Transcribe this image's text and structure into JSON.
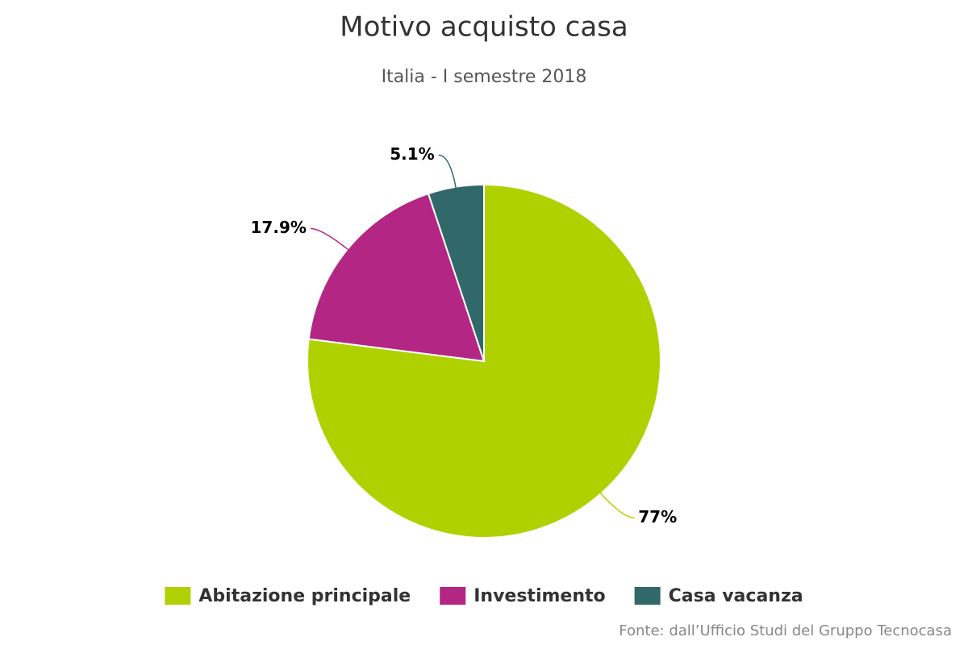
{
  "chart_data": {
    "type": "pie",
    "title": "Motivo acquisto casa",
    "subtitle": "Italia - I semestre 2018",
    "categories": [
      "Abitazione principale",
      "Investimento",
      "Casa vacanza"
    ],
    "values": [
      77,
      17.9,
      5.1
    ],
    "value_labels": [
      "77%",
      "17.9%",
      "5.1%"
    ],
    "colors": [
      "#b0d100",
      "#b42683",
      "#31686a"
    ],
    "credits": "Fonte: dall’Ufficio Studi del Gruppo Tecnocasa"
  }
}
